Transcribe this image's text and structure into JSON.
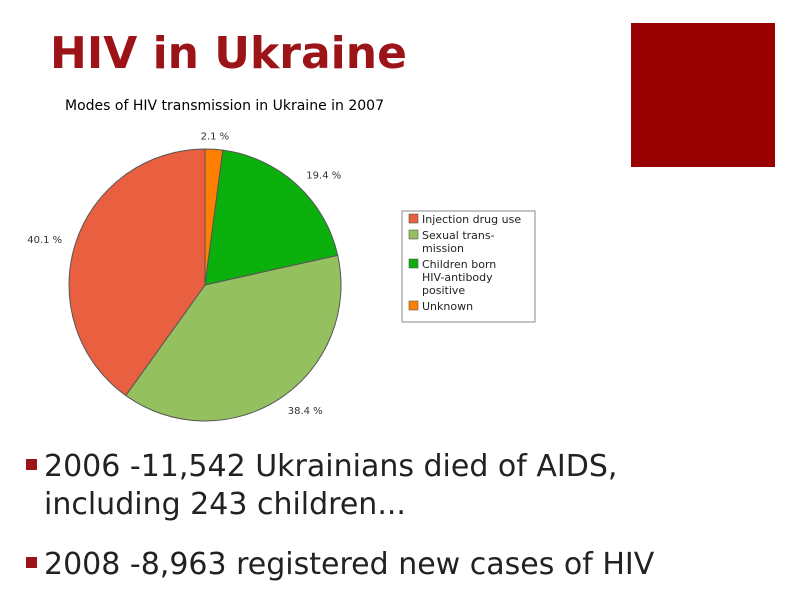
{
  "slide": {
    "title": "HIV in Ukraine",
    "accent_color": "#990000",
    "title_color": "#9c1418"
  },
  "chart_data": {
    "type": "pie",
    "title": "Modes of HIV transmission in Ukraine in 2007",
    "slices": [
      {
        "label": "Unknown",
        "value": 2.1,
        "display": "2.1 %",
        "color": "#ff8000"
      },
      {
        "label": "Children born HIV-antibody positive",
        "value": 19.4,
        "display": "19.4 %",
        "color": "#0cb00c"
      },
      {
        "label": "Sexual transmission",
        "value": 38.4,
        "display": "38.4 %",
        "color": "#94c060"
      },
      {
        "label": "Injection drug use",
        "value": 40.1,
        "display": "40.1 %",
        "color": "#e86040"
      }
    ],
    "legend": {
      "placement": "right",
      "entries": [
        {
          "lines": [
            "Injection drug use"
          ],
          "color": "#e86040"
        },
        {
          "lines": [
            "Sexual trans-",
            "mission"
          ],
          "color": "#94c060"
        },
        {
          "lines": [
            "Children born",
            "HIV-antibody",
            "positive"
          ],
          "color": "#0cb00c"
        },
        {
          "lines": [
            "Unknown"
          ],
          "color": "#ff8000"
        }
      ]
    }
  },
  "bullets": [
    {
      "lines": [
        "2006  -11,542 Ukrainians died of AIDS,",
        "including 243 children..."
      ]
    },
    {
      "lines": [
        "2008  -8,963 registered new cases of HIV"
      ]
    }
  ]
}
